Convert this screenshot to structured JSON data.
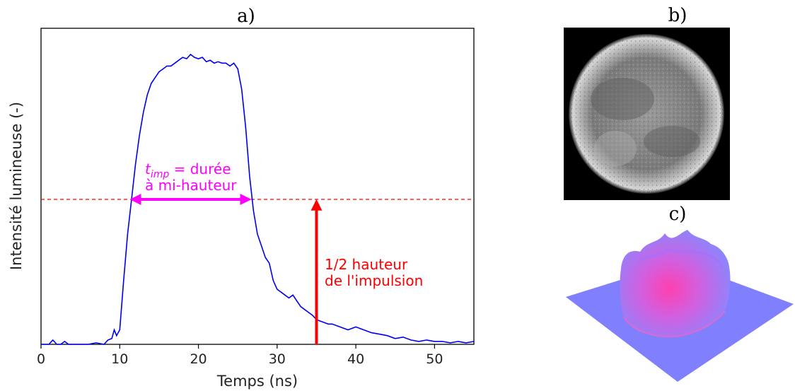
{
  "panels": {
    "a": "a)",
    "b": "b)",
    "c": "c)"
  },
  "colors": {
    "line": "#0000ee",
    "half_line": "#ff0000",
    "arrow_width": "#ff00ff",
    "arrow_height": "#ff0000",
    "surface_base": "#8080ff",
    "surface_peak": "#ff40b0"
  },
  "annotations": {
    "width_sym": "t",
    "width_sub": "imp",
    "width_rest": " = durée",
    "width_line2": "à mi-hauteur",
    "height_line1": "1/2 hauteur",
    "height_line2": "de l'impulsion"
  },
  "chart_data": {
    "type": "line",
    "xlabel": "Temps (ns)",
    "ylabel": "Intensité lumineuse (-)",
    "xlim": [
      0,
      55
    ],
    "ylim": [
      0,
      1.0
    ],
    "xticks": [
      "0",
      "10",
      "20",
      "30",
      "40",
      "50"
    ],
    "yticks": [],
    "half_max_level": 0.5,
    "fwhm_range": [
      11.2,
      26.8
    ],
    "half_height_arrow_x": 35,
    "series": [
      {
        "x": [
          0,
          1,
          1.5,
          2,
          2.5,
          3,
          3.5,
          6,
          7,
          8,
          8.5,
          9,
          9.3,
          9.6,
          10,
          10.5,
          11,
          11.5,
          12,
          12.5,
          13,
          13.5,
          14,
          14.5,
          15,
          15.5,
          16,
          16.5,
          17,
          17.5,
          18,
          18.5,
          19,
          19.5,
          20,
          20.5,
          21,
          21.5,
          22,
          22.5,
          23,
          23.5,
          24,
          24.5,
          25,
          25.5,
          26,
          26.5,
          27,
          27.5,
          28,
          28.5,
          29,
          29.5,
          30,
          30.5,
          31,
          31.5,
          32,
          32.5,
          33,
          33.5,
          34,
          34.5,
          35,
          35.5,
          36,
          36.5,
          37,
          38,
          39,
          40,
          41,
          42,
          43,
          44,
          45,
          46,
          47,
          48,
          49,
          50,
          51,
          52,
          53,
          54,
          55
        ],
        "y": [
          0,
          0,
          0.015,
          0,
          0,
          0.01,
          0,
          0,
          0.005,
          0,
          0.015,
          0.02,
          0.05,
          0.03,
          0.05,
          0.22,
          0.38,
          0.5,
          0.62,
          0.72,
          0.8,
          0.86,
          0.9,
          0.92,
          0.94,
          0.95,
          0.96,
          0.96,
          0.97,
          0.98,
          0.99,
          0.985,
          1.0,
          0.99,
          0.985,
          0.99,
          0.975,
          0.98,
          0.97,
          0.975,
          0.97,
          0.97,
          0.96,
          0.97,
          0.95,
          0.88,
          0.75,
          0.58,
          0.46,
          0.38,
          0.34,
          0.3,
          0.28,
          0.22,
          0.19,
          0.18,
          0.17,
          0.16,
          0.17,
          0.15,
          0.13,
          0.12,
          0.11,
          0.1,
          0.085,
          0.08,
          0.075,
          0.07,
          0.07,
          0.06,
          0.05,
          0.06,
          0.05,
          0.04,
          0.035,
          0.03,
          0.02,
          0.025,
          0.015,
          0.01,
          0.015,
          0.01,
          0.01,
          0.005,
          0.01,
          0.005,
          0.01
        ]
      }
    ]
  }
}
